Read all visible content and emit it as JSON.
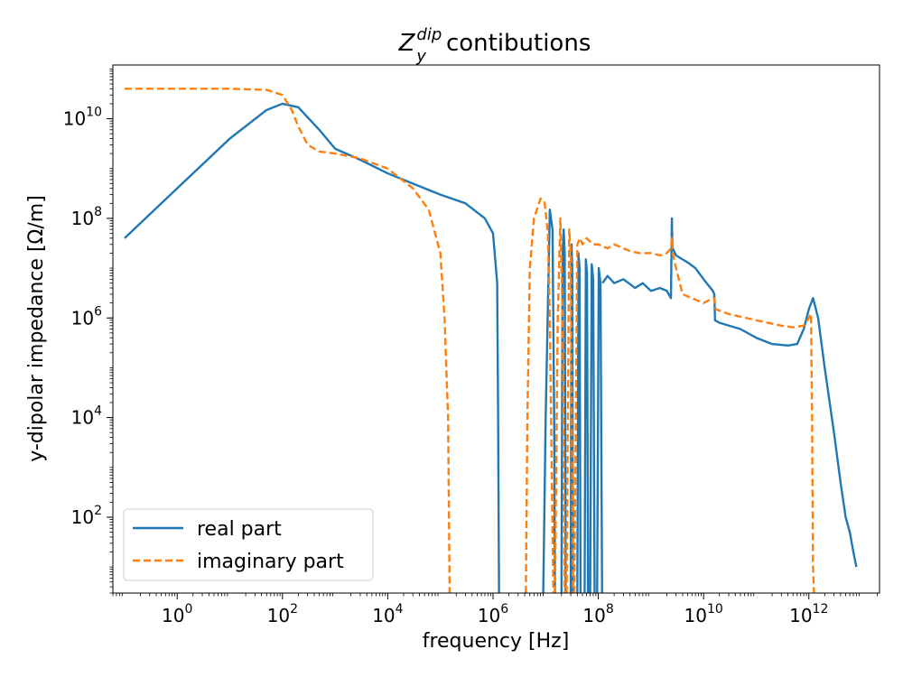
{
  "chart_data": {
    "type": "line",
    "title": {
      "symbol": "Z",
      "subscript": "y",
      "superscript": "dip",
      "text": "contibutions"
    },
    "xlabel": "frequency [Hz]",
    "ylabel": "y-dipolar impedance [Ω/m]",
    "xscale": "log",
    "yscale": "log",
    "xlim": [
      0.06,
      22000000000000.0
    ],
    "ylim": [
      3,
      120000000000.0
    ],
    "x_ticks": [
      {
        "base": "10",
        "exp": "0"
      },
      {
        "base": "10",
        "exp": "2"
      },
      {
        "base": "10",
        "exp": "4"
      },
      {
        "base": "10",
        "exp": "6"
      },
      {
        "base": "10",
        "exp": "8"
      },
      {
        "base": "10",
        "exp": "10"
      },
      {
        "base": "10",
        "exp": "12"
      }
    ],
    "y_ticks": [
      {
        "base": "10",
        "exp": "2"
      },
      {
        "base": "10",
        "exp": "4"
      },
      {
        "base": "10",
        "exp": "6"
      },
      {
        "base": "10",
        "exp": "8"
      },
      {
        "base": "10",
        "exp": "10"
      }
    ],
    "legend": "lower-left",
    "grid": false,
    "series": [
      {
        "name": "real part",
        "color": "#1f77b4",
        "style": "solid",
        "x": [
          0.1,
          1,
          10,
          50,
          100,
          200,
          500,
          1000,
          3000,
          10000,
          30000,
          100000,
          300000,
          700000,
          1000000,
          1200000,
          1250000,
          1300000
        ],
        "y": [
          40000000.0,
          400000000.0,
          4000000000.0,
          15000000000.0,
          20000000000.0,
          17000000000.0,
          6000000000.0,
          2500000000.0,
          1500000000.0,
          800000000.0,
          500000000.0,
          300000000.0,
          200000000.0,
          100000000.0,
          50000000.0,
          5000000.0,
          10000.0,
          3
        ],
        "segments": [
          {
            "x": [
              9000000.0,
              10000000.0,
              12000000.0,
              13500000.0,
              14500000.0,
              15000000.0
            ],
            "y": [
              3,
              10000.0,
              150000000.0,
              60000000.0,
              10000.0,
              3
            ]
          },
          {
            "x": [
              20000000.0,
              21000000.0,
              22000000.0,
              23000000.0,
              24000000.0
            ],
            "y": [
              3,
              20000000.0,
              60000000.0,
              20000000.0,
              3
            ]
          },
          {
            "x": [
              30000000.0,
              31000000.0,
              32000000.0,
              33000000.0
            ],
            "y": [
              3,
              30000000.0,
              10000000.0,
              3
            ]
          },
          {
            "x": [
              40000000.0,
              42000000.0,
              44000000.0,
              46000000.0
            ],
            "y": [
              3,
              20000000.0,
              10000000.0,
              3
            ]
          },
          {
            "x": [
              55000000.0,
              58000000.0,
              61000000.0,
              64000000.0
            ],
            "y": [
              3,
              15000000.0,
              8000000.0,
              3
            ]
          },
          {
            "x": [
              70000000.0,
              75000000.0,
              80000000.0,
              85000000.0
            ],
            "y": [
              3,
              12000000.0,
              6000000.0,
              3
            ]
          },
          {
            "x": [
              95000000.0,
              102000000.0,
              110000000.0,
              118000000.0
            ],
            "y": [
              3,
              10000000.0,
              5000000.0,
              3
            ]
          },
          {
            "x": [
              120000000.0,
              150000000.0,
              200000000.0,
              300000000.0,
              500000000.0,
              700000000.0,
              1000000000.0,
              1500000000.0,
              2000000000.0,
              2400000000.0,
              2500000000.0,
              2550000000.0,
              2600000000.0,
              3000000000.0,
              4000000000.0,
              5000000000.0,
              7000000000.0,
              10000000000.0,
              15000000000.0,
              16000000000.0,
              16500000000.0,
              20000000000.0,
              50000000000.0,
              100000000000.0,
              200000000000.0,
              400000000000.0,
              600000000000.0,
              800000000000.0,
              1000000000000.0,
              1200000000000.0,
              1500000000000.0,
              2000000000000.0,
              3000000000000.0,
              4000000000000.0,
              5000000000000.0,
              6000000000000.0,
              7000000000000.0,
              8000000000000.0
            ],
            "y": [
              5000000.0,
              7000000.0,
              5000000.0,
              6000000.0,
              4000000.0,
              5000000.0,
              3500000.0,
              4000000.0,
              3500000.0,
              2500000.0,
              100000000.0,
              30000000.0,
              25000000.0,
              18000000.0,
              15000000.0,
              13000000.0,
              10000000.0,
              6000000.0,
              3500000.0,
              3000000.0,
              900000.0,
              800000.0,
              600000.0,
              400000.0,
              300000.0,
              280000.0,
              300000.0,
              600000.0,
              1500000.0,
              2500000.0,
              1000000.0,
              100000.0,
              5000.0,
              500.0,
              100.0,
              50.0,
              20.0,
              10.0
            ]
          }
        ]
      },
      {
        "name": "imaginary part",
        "color": "#ff7f0e",
        "style": "dashed",
        "x": [
          0.1,
          1,
          10,
          50,
          100,
          150,
          200,
          300,
          500,
          1000,
          3000,
          10000,
          30000,
          60000,
          100000,
          120000,
          140000,
          150000
        ],
        "y": [
          40000000000.0,
          40000000000.0,
          40000000000.0,
          38000000000.0,
          30000000000.0,
          15000000000.0,
          7000000000.0,
          3000000000.0,
          2200000000.0,
          2000000000.0,
          1600000000.0,
          1000000000.0,
          400000000.0,
          150000000.0,
          20000000.0,
          1000000.0,
          10000.0,
          3
        ],
        "segments": [
          {
            "x": [
              4200000.0,
              4500000.0,
              5000000.0,
              6000000.0,
              8000000.0,
              9500000.0,
              11000000.0,
              12000000.0,
              13000000.0,
              14000000.0
            ],
            "y": [
              3,
              10000.0,
              10000000.0,
              100000000.0,
              250000000.0,
              220000000.0,
              50000000.0,
              1000000.0,
              1000.0,
              3
            ]
          },
          {
            "x": [
              15000000.0,
              17000000.0,
              19000000.0,
              21000000.0,
              23000000.0
            ],
            "y": [
              3,
              1000000.0,
              100000000.0,
              1000000.0,
              3
            ]
          },
          {
            "x": [
              25000000.0,
              28000000.0,
              30000000.0,
              33000000.0
            ],
            "y": [
              3,
              60000000.0,
              20000000.0,
              3
            ]
          },
          {
            "x": [
              35000000.0,
              40000000.0,
              45000000.0,
              50000000.0,
              60000000.0,
              80000000.0,
              100000000.0,
              150000000.0,
              200000000.0,
              300000000.0,
              400000000.0,
              600000000.0,
              1000000000.0,
              1500000000.0,
              2000000000.0,
              2400000000.0,
              2500000000.0,
              2600000000.0,
              3000000000.0,
              4000000000.0,
              6000000000.0,
              10000000000.0,
              15000000000.0,
              16000000000.0,
              17000000000.0,
              30000000000.0,
              100000000000.0,
              300000000000.0,
              500000000000.0,
              800000000000.0,
              1000000000000.0,
              1100000000000.0,
              1150000000000.0,
              1200000000000.0,
              1250000000000.0
            ],
            "y": [
              3,
              30000000.0,
              40000000.0,
              30000000.0,
              40000000.0,
              30000000.0,
              30000000.0,
              25000000.0,
              30000000.0,
              25000000.0,
              22000000.0,
              20000000.0,
              20000000.0,
              18000000.0,
              20000000.0,
              25000000.0,
              40000000.0,
              20000000.0,
              10000000.0,
              3000000.0,
              2500000.0,
              2000000.0,
              2500000.0,
              2500000.0,
              1500000.0,
              1200000.0,
              900000.0,
              700000.0,
              650000.0,
              700000.0,
              1000000.0,
              1200000.0,
              10000.0,
              10,
              3
            ]
          }
        ]
      }
    ]
  }
}
